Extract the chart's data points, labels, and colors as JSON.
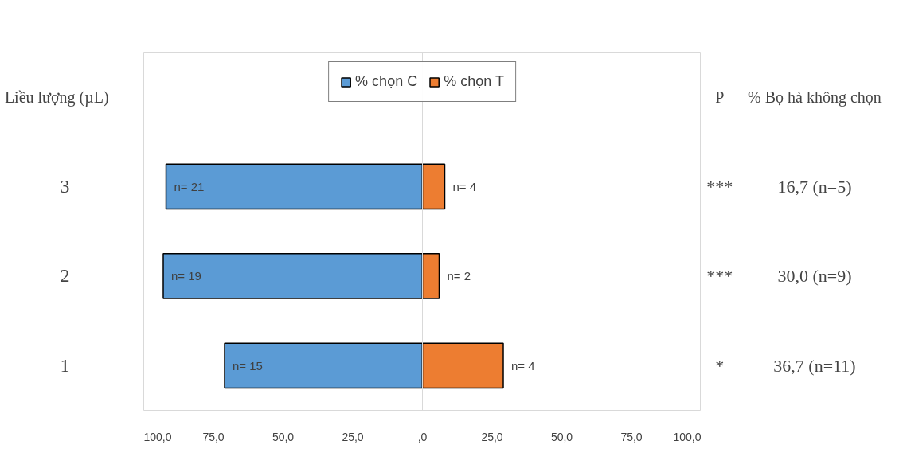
{
  "chart_data": {
    "type": "bar",
    "orientation": "horizontal",
    "stacked": true,
    "ylabel": "Liều lượng (µL)",
    "categories": [
      "3",
      "2",
      "1"
    ],
    "series": [
      {
        "name": "% chọn C",
        "color": "#5b9bd5",
        "values": [
          -92,
          -93,
          -71
        ]
      },
      {
        "name": "% chọn T",
        "color": "#ed7d31",
        "values": [
          8,
          6,
          29
        ]
      }
    ],
    "xlim": [
      -100,
      100
    ],
    "xticks": [
      {
        "value": -100,
        "label": "100,0"
      },
      {
        "value": -75,
        "label": "75,0"
      },
      {
        "value": -50,
        "label": "50,0"
      },
      {
        "value": -25,
        "label": "25,0"
      },
      {
        "value": 0,
        "label": ",0"
      },
      {
        "value": 25,
        "label": "25,0"
      },
      {
        "value": 50,
        "label": "50,0"
      },
      {
        "value": 75,
        "label": "75,0"
      },
      {
        "value": 100,
        "label": "100,0"
      }
    ],
    "ref_lines": [
      {
        "axis": "x",
        "value": 0,
        "color": "#d9d9d9"
      }
    ],
    "annotations": [
      "P",
      "% Bọ hà không chọn",
      "***",
      "16,7 (n=5)",
      "***",
      "30,0 (n=9)",
      "*",
      "36,7 (n=11)",
      {
        "text": "n= 21",
        "x": -92,
        "y": "3"
      },
      {
        "text": "n= 19",
        "x": -93,
        "y": "2"
      },
      {
        "text": "n= 15",
        "x": -71,
        "y": "1"
      },
      {
        "text": "n= 4",
        "x": 8,
        "y": "3"
      },
      {
        "text": "n= 2",
        "x": 6,
        "y": "2"
      },
      {
        "text": "n= 4",
        "x": 29,
        "y": "1"
      }
    ],
    "legend": "top",
    "grid": false
  }
}
